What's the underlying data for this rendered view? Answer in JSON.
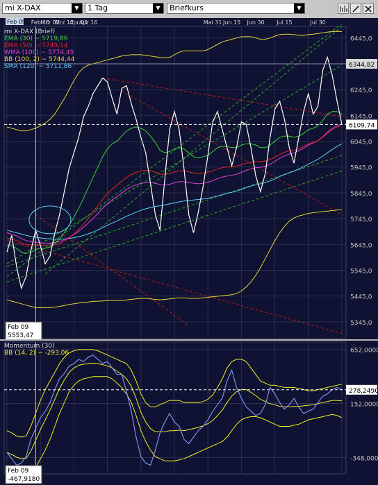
{
  "toolbar": {
    "instrument": "mi X-DAX",
    "period": "1 Tag",
    "price_type": "Briefkurs"
  },
  "colors": {
    "background": "#0f1230",
    "grid": "#2a2d55",
    "price": "#ffffff",
    "ema30": "#3cd23c",
    "ema50": "#e02424",
    "wma100": "#e040e0",
    "bb": "#e8d23a",
    "sma120": "#5ad2ff",
    "trend_green": "#2ea82e",
    "trend_red": "#b81c1c",
    "momentum": "#7b8ef0",
    "momentum_bb": "#f0f028"
  },
  "chart_data": [
    {
      "type": "line",
      "title": "mi X-DAX (Brief)",
      "x_tick_labels": [
        "Feb 15",
        "Mrz 02",
        "Mrz 17",
        "Apr 01",
        "Apr 16",
        "Mai 31",
        "Jun 15",
        "Jun 30",
        "Jul 15",
        "Jul 30"
      ],
      "y_ticks": [
        5345,
        5445,
        5545,
        5645,
        5745,
        5845,
        5945,
        6045,
        6145,
        6245,
        6345,
        6445
      ],
      "y_tick_labels": [
        "5345,0",
        "5445,0",
        "5545,0",
        "5645,0",
        "5745,0",
        "5845,0",
        "5945,0",
        "6045,0",
        "6145,0",
        "6245,0",
        "6345,0",
        "6445,0"
      ],
      "ylim": [
        5280,
        6490
      ],
      "grid": true,
      "legend": [
        {
          "key": "ema30",
          "text": "EMA (30) ~ 5719,86"
        },
        {
          "key": "ema50",
          "text": "EMA (50) ~ 5749,14"
        },
        {
          "key": "wma100",
          "text": "WMA (100) ~ 5774,45"
        },
        {
          "key": "bb",
          "text": "BB (100, 2) ~ 5744,44"
        },
        {
          "key": "sma120",
          "text": "SMA (120) ~ 5711,86"
        }
      ],
      "markers": {
        "high_value": 6344.82,
        "high_label": "6344,82",
        "last_value": 6109.74,
        "last_label": "6109,74",
        "cursor_date": "Feb 09",
        "cursor_value_label": "5553,47"
      },
      "series": [
        {
          "key": "price",
          "values": [
            5615,
            5680,
            5560,
            5475,
            5520,
            5620,
            5700,
            5640,
            5570,
            5600,
            5690,
            5760,
            5850,
            5940,
            6000,
            6060,
            6140,
            6180,
            6230,
            6260,
            6290,
            6275,
            6210,
            6150,
            6250,
            6260,
            6190,
            6130,
            6060,
            6000,
            5880,
            5760,
            5700,
            5900,
            6090,
            6160,
            6090,
            5940,
            5760,
            5690,
            5770,
            5870,
            5990,
            6120,
            6160,
            6090,
            6020,
            5950,
            6020,
            6120,
            6110,
            6020,
            5910,
            5850,
            5920,
            6060,
            6170,
            6200,
            6130,
            6020,
            5960,
            6060,
            6160,
            6230,
            6150,
            6180,
            6320,
            6370,
            6300,
            6200,
            6110
          ]
        },
        {
          "key": "ema30",
          "values": [
            5640,
            5640,
            5630,
            5615,
            5610,
            5615,
            5625,
            5630,
            5630,
            5635,
            5650,
            5665,
            5690,
            5720,
            5750,
            5785,
            5825,
            5865,
            5905,
            5945,
            5985,
            6015,
            6035,
            6045,
            6065,
            6085,
            6095,
            6100,
            6095,
            6085,
            6065,
            6040,
            6010,
            6000,
            6005,
            6015,
            6020,
            6015,
            6000,
            5985,
            5980,
            5985,
            5990,
            6005,
            6020,
            6025,
            6025,
            6020,
            6020,
            6030,
            6035,
            6035,
            6030,
            6020,
            6020,
            6030,
            6045,
            6060,
            6065,
            6065,
            6060,
            6065,
            6075,
            6090,
            6095,
            6105,
            6125,
            6150,
            6160,
            6160,
            6150
          ]
        },
        {
          "key": "ema50",
          "values": [
            5670,
            5665,
            5660,
            5650,
            5645,
            5643,
            5643,
            5643,
            5640,
            5640,
            5643,
            5648,
            5658,
            5670,
            5685,
            5703,
            5724,
            5746,
            5770,
            5795,
            5820,
            5842,
            5860,
            5874,
            5890,
            5905,
            5916,
            5924,
            5930,
            5932,
            5930,
            5925,
            5918,
            5916,
            5920,
            5926,
            5930,
            5930,
            5926,
            5922,
            5920,
            5922,
            5925,
            5930,
            5938,
            5942,
            5945,
            5946,
            5948,
            5954,
            5960,
            5964,
            5966,
            5966,
            5968,
            5974,
            5984,
            5994,
            6002,
            6008,
            6010,
            6016,
            6024,
            6034,
            6040,
            6048,
            6060,
            6076,
            6090,
            6100,
            6105
          ]
        },
        {
          "key": "wma100",
          "values": [
            5690,
            5685,
            5678,
            5668,
            5660,
            5655,
            5653,
            5652,
            5650,
            5650,
            5652,
            5656,
            5663,
            5672,
            5683,
            5696,
            5712,
            5728,
            5746,
            5765,
            5785,
            5803,
            5818,
            5830,
            5844,
            5858,
            5868,
            5876,
            5882,
            5885,
            5885,
            5882,
            5877,
            5875,
            5878,
            5884,
            5888,
            5888,
            5885,
            5882,
            5880,
            5882,
            5886,
            5892,
            5900,
            5906,
            5910,
            5913,
            5917,
            5924,
            5932,
            5938,
            5942,
            5944,
            5948,
            5956,
            5967,
            5979,
            5988,
            5995,
            6000,
            6008,
            6018,
            6030,
            6038,
            6048,
            6062,
            6080,
            6095,
            6105,
            6112
          ]
        },
        {
          "key": "sma120",
          "values": [
            5700,
            5695,
            5690,
            5685,
            5680,
            5676,
            5673,
            5670,
            5668,
            5666,
            5665,
            5665,
            5666,
            5668,
            5671,
            5675,
            5680,
            5686,
            5693,
            5701,
            5710,
            5719,
            5728,
            5736,
            5745,
            5754,
            5762,
            5770,
            5777,
            5783,
            5788,
            5792,
            5795,
            5798,
            5802,
            5806,
            5810,
            5813,
            5815,
            5817,
            5819,
            5821,
            5824,
            5828,
            5833,
            5838,
            5843,
            5847,
            5852,
            5858,
            5865,
            5871,
            5876,
            5880,
            5885,
            5891,
            5899,
            5908,
            5916,
            5923,
            5929,
            5937,
            5946,
            5956,
            5965,
            5975,
            5987,
            6000,
            6013,
            6025,
            6035
          ]
        },
        {
          "key": "bb_upper",
          "values": [
            6100,
            6095,
            6090,
            6085,
            6085,
            6090,
            6095,
            6105,
            6115,
            6130,
            6150,
            6180,
            6210,
            6245,
            6280,
            6310,
            6330,
            6340,
            6345,
            6350,
            6355,
            6360,
            6365,
            6370,
            6375,
            6378,
            6380,
            6380,
            6380,
            6378,
            6375,
            6372,
            6370,
            6368,
            6370,
            6380,
            6390,
            6395,
            6395,
            6395,
            6395,
            6395,
            6400,
            6410,
            6420,
            6430,
            6435,
            6440,
            6445,
            6450,
            6450,
            6450,
            6445,
            6440,
            6440,
            6445,
            6452,
            6458,
            6460,
            6460,
            6458,
            6455,
            6455,
            6458,
            6460,
            6462,
            6465,
            6468,
            6470,
            6470,
            6470
          ]
        },
        {
          "key": "bb_lower",
          "values": [
            5430,
            5425,
            5420,
            5415,
            5410,
            5405,
            5400,
            5400,
            5400,
            5400,
            5402,
            5405,
            5408,
            5412,
            5415,
            5418,
            5420,
            5422,
            5424,
            5425,
            5426,
            5427,
            5428,
            5428,
            5428,
            5430,
            5432,
            5434,
            5436,
            5436,
            5434,
            5432,
            5430,
            5432,
            5434,
            5436,
            5438,
            5438,
            5436,
            5436,
            5436,
            5438,
            5440,
            5442,
            5444,
            5446,
            5448,
            5450,
            5455,
            5465,
            5480,
            5500,
            5525,
            5555,
            5590,
            5625,
            5660,
            5690,
            5715,
            5735,
            5748,
            5755,
            5760,
            5765,
            5768,
            5770,
            5772,
            5774,
            5776,
            5778,
            5780
          ]
        }
      ],
      "trendlines_green": [
        {
          "from": [
            0,
            5520
          ],
          "to": [
            70,
            6500
          ]
        },
        {
          "from": [
            0,
            5570
          ],
          "to": [
            70,
            6340
          ]
        },
        {
          "from": [
            0,
            5500
          ],
          "to": [
            70,
            5930
          ]
        },
        {
          "from": [
            0,
            5560
          ],
          "to": [
            70,
            5990
          ]
        },
        {
          "from": [
            8,
            5530
          ],
          "to": [
            70,
            6490
          ]
        }
      ],
      "trendlines_red": [
        {
          "from": [
            20,
            6290
          ],
          "to": [
            70,
            6140
          ]
        },
        {
          "from": [
            0,
            5660
          ],
          "to": [
            70,
            5300
          ]
        },
        {
          "from": [
            6,
            5760
          ],
          "to": [
            38,
            5330
          ]
        },
        {
          "from": [
            24,
            6240
          ],
          "to": [
            70,
            5760
          ]
        }
      ]
    },
    {
      "type": "line",
      "title": "Momentum (30)",
      "ylim": [
        -500,
        720
      ],
      "y_ticks": [
        -348,
        152,
        652
      ],
      "y_tick_labels": [
        "-348,0000",
        "152,0000",
        "652,0000"
      ],
      "grid": true,
      "legend": [
        {
          "key": "momentum",
          "text": "Momentum (30)"
        },
        {
          "key": "momentum_bb",
          "text": "BB (14, 2) ~ -293,06"
        }
      ],
      "markers": {
        "last_value": 278.249,
        "last_label": "278,2490",
        "cursor_date": "Feb 09",
        "cursor_value_label": "-467,9180"
      },
      "series": [
        {
          "key": "momentum",
          "values": [
            -300,
            -360,
            -420,
            -400,
            -340,
            -180,
            -80,
            20,
            80,
            160,
            280,
            380,
            430,
            500,
            520,
            560,
            540,
            580,
            600,
            560,
            520,
            540,
            480,
            420,
            420,
            260,
            80,
            -160,
            -340,
            -400,
            -420,
            -280,
            -120,
            -20,
            60,
            -20,
            -60,
            -180,
            -220,
            -160,
            -100,
            -60,
            0,
            80,
            140,
            200,
            360,
            460,
            300,
            200,
            120,
            80,
            40,
            60,
            140,
            300,
            240,
            160,
            100,
            140,
            200,
            120,
            60,
            80,
            100,
            160,
            220,
            240,
            280,
            300,
            278
          ]
        },
        {
          "key": "bb_upper",
          "values": [
            -100,
            -120,
            -150,
            -160,
            -150,
            -60,
            60,
            180,
            280,
            360,
            440,
            520,
            580,
            620,
            640,
            650,
            650,
            650,
            650,
            640,
            620,
            600,
            580,
            560,
            540,
            520,
            460,
            360,
            240,
            160,
            120,
            120,
            140,
            160,
            180,
            180,
            180,
            160,
            160,
            160,
            160,
            170,
            190,
            230,
            300,
            380,
            480,
            540,
            560,
            560,
            540,
            480,
            420,
            360,
            340,
            320,
            320,
            310,
            300,
            300,
            300,
            290,
            280,
            270,
            270,
            280,
            290,
            300,
            310,
            320,
            330
          ]
        },
        {
          "key": "bb_lower",
          "values": [
            -500,
            -520,
            -540,
            -560,
            -560,
            -520,
            -440,
            -360,
            -280,
            -180,
            -60,
            60,
            160,
            260,
            320,
            360,
            380,
            390,
            400,
            400,
            400,
            400,
            380,
            340,
            300,
            240,
            160,
            40,
            -100,
            -200,
            -280,
            -340,
            -360,
            -380,
            -380,
            -380,
            -370,
            -360,
            -340,
            -320,
            -300,
            -280,
            -260,
            -240,
            -220,
            -200,
            -160,
            -100,
            -40,
            0,
            20,
            30,
            30,
            20,
            0,
            -20,
            -40,
            -60,
            -60,
            -60,
            -50,
            -40,
            -20,
            0,
            10,
            20,
            30,
            40,
            50,
            40,
            20
          ]
        },
        {
          "key": "bb_mid",
          "values": [
            -300,
            -320,
            -345,
            -360,
            -355,
            -290,
            -190,
            -90,
            0,
            90,
            190,
            290,
            370,
            440,
            480,
            505,
            515,
            520,
            525,
            520,
            510,
            500,
            480,
            450,
            420,
            380,
            310,
            200,
            70,
            -20,
            -80,
            -110,
            -110,
            -110,
            -100,
            -100,
            -95,
            -100,
            -90,
            -80,
            -70,
            -55,
            -35,
            -5,
            40,
            90,
            160,
            220,
            260,
            280,
            280,
            255,
            225,
            190,
            170,
            150,
            140,
            125,
            120,
            120,
            125,
            125,
            130,
            135,
            140,
            150,
            160,
            170,
            180,
            180,
            175
          ]
        }
      ]
    }
  ]
}
